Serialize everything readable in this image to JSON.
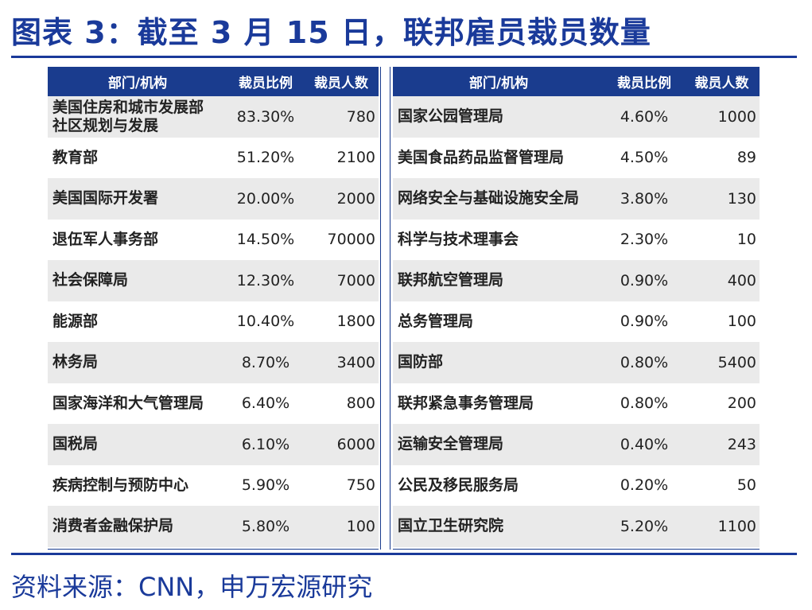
{
  "title": "图表 3：截至 3 月 15 日，联邦雇员裁员数量",
  "source": "资料来源：CNN，申万宏源研究",
  "colors": {
    "accent": "#1a3a9a",
    "header_bg": "#1a3c8e",
    "stripe": "#eaeaea"
  },
  "left_table": {
    "headers": [
      "部门/机构",
      "裁员比例",
      "裁员人数"
    ],
    "rows": [
      {
        "name": "美国住房和城市发展部\n社区规划与发展",
        "ratio": "83.30%",
        "count": "780"
      },
      {
        "name": "教育部",
        "ratio": "51.20%",
        "count": "2100"
      },
      {
        "name": "美国国际开发署",
        "ratio": "20.00%",
        "count": "2000"
      },
      {
        "name": "退伍军人事务部",
        "ratio": "14.50%",
        "count": "70000"
      },
      {
        "name": "社会保障局",
        "ratio": "12.30%",
        "count": "7000"
      },
      {
        "name": "能源部",
        "ratio": "10.40%",
        "count": "1800"
      },
      {
        "name": "林务局",
        "ratio": "8.70%",
        "count": "3400"
      },
      {
        "name": "国家海洋和大气管理局",
        "ratio": "6.40%",
        "count": "800"
      },
      {
        "name": "国税局",
        "ratio": "6.10%",
        "count": "6000"
      },
      {
        "name": "疾病控制与预防中心",
        "ratio": "5.90%",
        "count": "750"
      },
      {
        "name": "消费者金融保护局",
        "ratio": "5.80%",
        "count": "100"
      }
    ]
  },
  "right_table": {
    "headers": [
      "部门/机构",
      "裁员比例",
      "裁员人数"
    ],
    "rows": [
      {
        "name": "国家公园管理局",
        "ratio": "4.60%",
        "count": "1000"
      },
      {
        "name": "美国食品药品监督管理局",
        "ratio": "4.50%",
        "count": "89"
      },
      {
        "name": "网络安全与基础设施安全局",
        "ratio": "3.80%",
        "count": "130"
      },
      {
        "name": "科学与技术理事会",
        "ratio": "2.30%",
        "count": "10"
      },
      {
        "name": "联邦航空管理局",
        "ratio": "0.90%",
        "count": "400"
      },
      {
        "name": "总务管理局",
        "ratio": "0.90%",
        "count": "100"
      },
      {
        "name": "国防部",
        "ratio": "0.80%",
        "count": "5400"
      },
      {
        "name": "联邦紧急事务管理局",
        "ratio": "0.80%",
        "count": "200"
      },
      {
        "name": "运输安全管理局",
        "ratio": "0.40%",
        "count": "243"
      },
      {
        "name": "公民及移民服务局",
        "ratio": "0.20%",
        "count": "50"
      },
      {
        "name": "国立卫生研究院",
        "ratio": "5.20%",
        "count": "1100"
      }
    ]
  }
}
